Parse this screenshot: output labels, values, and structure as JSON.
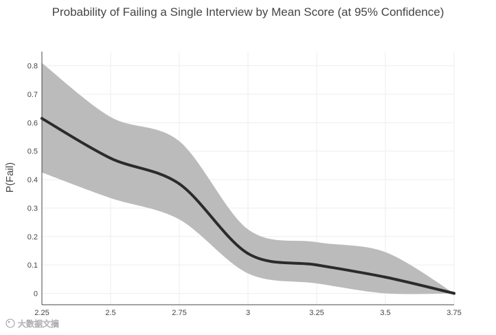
{
  "chart_data": {
    "type": "line",
    "title": "Probability of Failing a Single Interview by Mean Score (at 95% Confidence)",
    "xlabel": "",
    "ylabel": "P(Fail)",
    "xlim": [
      2.25,
      3.75
    ],
    "ylim": [
      -0.04,
      0.85
    ],
    "grid": true,
    "legend": "none",
    "x_ticks": [
      2.25,
      2.5,
      2.75,
      3,
      3.25,
      3.5,
      3.75
    ],
    "x_tick_labels": [
      "2.25",
      "2.5",
      "2.75",
      "3",
      "3.25",
      "3.5",
      "3.75"
    ],
    "y_ticks": [
      0,
      0.1,
      0.2,
      0.3,
      0.4,
      0.5,
      0.6,
      0.7,
      0.8
    ],
    "y_tick_labels": [
      "0",
      "0.1",
      "0.2",
      "0.3",
      "0.4",
      "0.5",
      "0.6",
      "0.7",
      "0.8"
    ],
    "x": [
      2.25,
      2.5,
      2.75,
      3,
      3.25,
      3.5,
      3.75
    ],
    "series": [
      {
        "values": [
          0.615,
          0.475,
          0.385,
          0.14,
          0.1,
          0.057,
          0.0
        ],
        "color": "#2b2b2b"
      }
    ],
    "confidence_band": {
      "upper": [
        0.81,
        0.62,
        0.535,
        0.225,
        0.18,
        0.145,
        0.0
      ],
      "lower": [
        0.425,
        0.335,
        0.26,
        0.07,
        0.035,
        0.0,
        0.0
      ],
      "color": "#bbbbbb"
    }
  },
  "watermark": {
    "text": "大数据文摘"
  }
}
